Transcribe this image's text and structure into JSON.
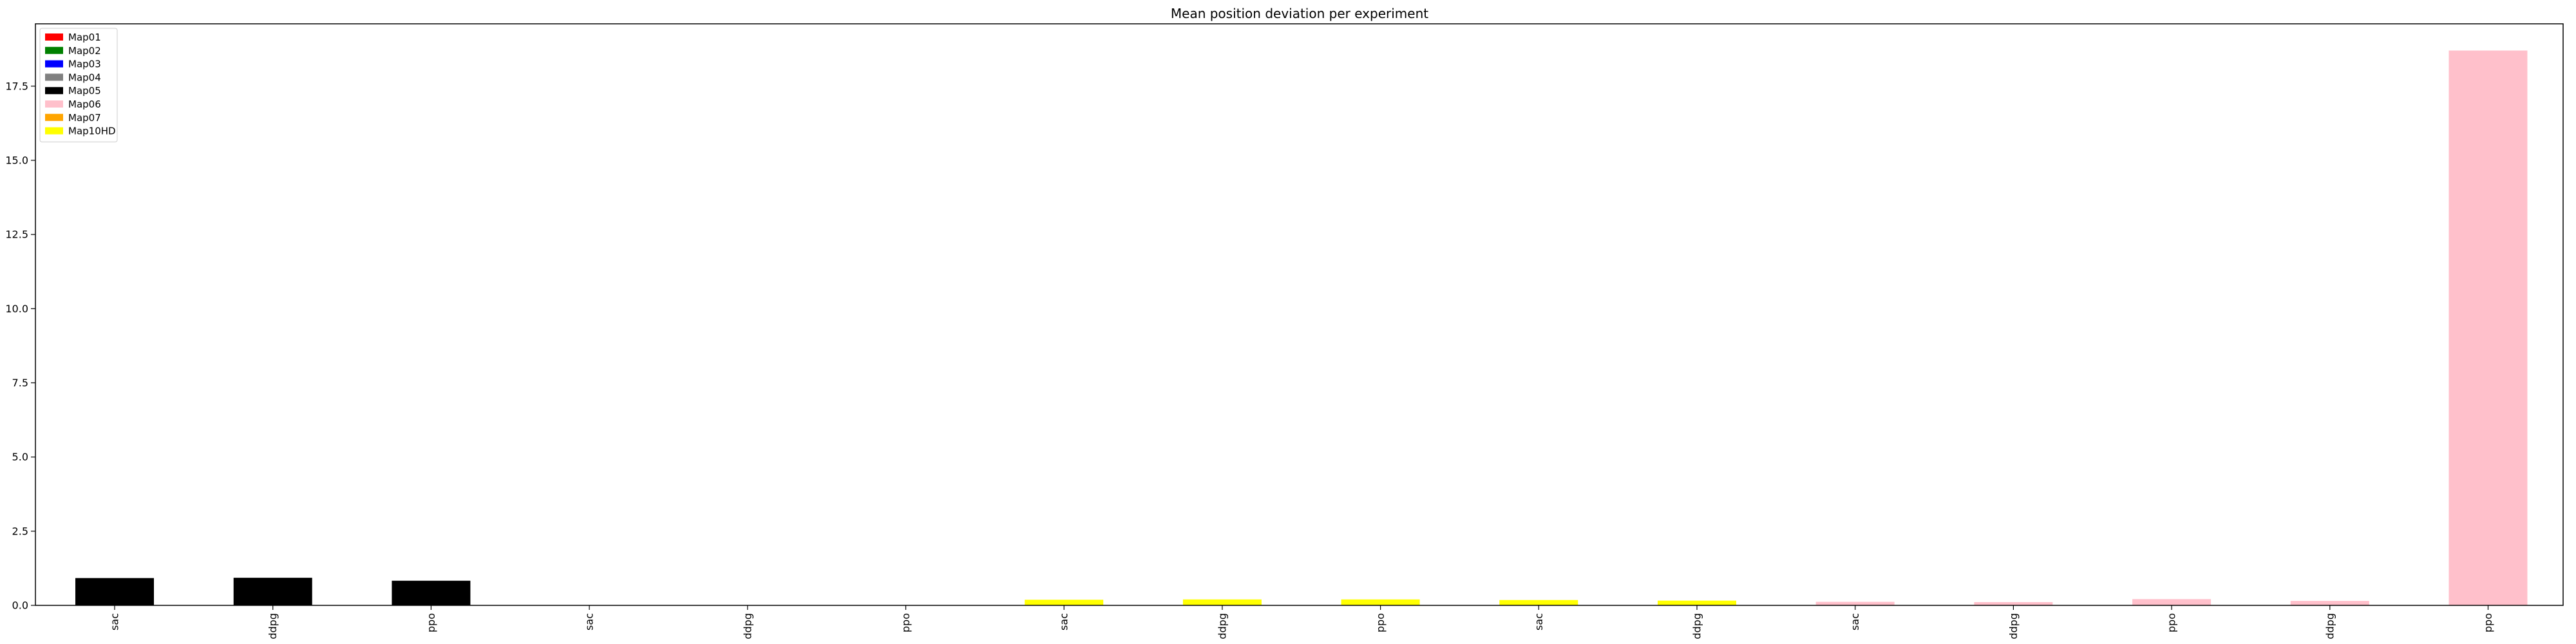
{
  "chart_data": {
    "type": "bar",
    "title": "Mean position deviation per experiment",
    "xlabel": "",
    "ylabel": "",
    "ylim": [
      0,
      19.6
    ],
    "yticks": [
      0.0,
      2.5,
      5.0,
      7.5,
      10.0,
      12.5,
      15.0,
      17.5
    ],
    "ytick_labels": [
      "0.0",
      "2.5",
      "5.0",
      "7.5",
      "10.0",
      "12.5",
      "15.0",
      "17.5"
    ],
    "grid": false,
    "legend_placement": "top-left",
    "legend": [
      {
        "name": "Map01",
        "color": "#ff0000"
      },
      {
        "name": "Map02",
        "color": "#008000"
      },
      {
        "name": "Map03",
        "color": "#0000ff"
      },
      {
        "name": "Map04",
        "color": "#808080"
      },
      {
        "name": "Map05",
        "color": "#000000"
      },
      {
        "name": "Map06",
        "color": "#ffc0cb"
      },
      {
        "name": "Map07",
        "color": "#ffa500"
      },
      {
        "name": "Map10HD",
        "color": "#ffff00"
      }
    ],
    "categories": [
      "sac",
      "ddpg",
      "ppo",
      "sac",
      "ddpg",
      "ppo",
      "sac",
      "ddpg",
      "ppo",
      "sac",
      "ddpg",
      "sac",
      "ddpg",
      "ppo",
      "ddpg",
      "ppo"
    ],
    "values": [
      0.92,
      0.93,
      0.83,
      0.0,
      0.0,
      0.0,
      0.19,
      0.2,
      0.2,
      0.18,
      0.16,
      0.12,
      0.11,
      0.21,
      0.15,
      18.7
    ],
    "colors": [
      "#000000",
      "#000000",
      "#000000",
      "#000000",
      "#000000",
      "#000000",
      "#ffff00",
      "#ffff00",
      "#ffff00",
      "#ffff00",
      "#ffff00",
      "#ffc0cb",
      "#ffc0cb",
      "#ffc0cb",
      "#ffc0cb",
      "#ffc0cb"
    ]
  }
}
